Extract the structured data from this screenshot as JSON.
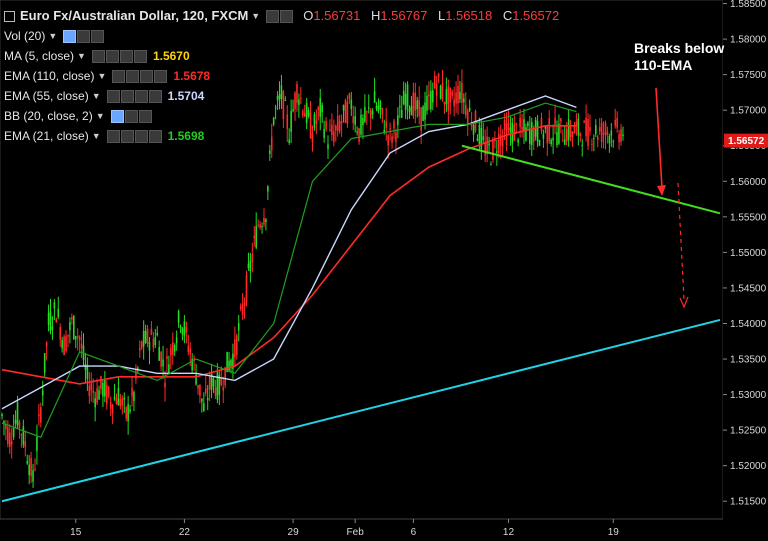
{
  "header": {
    "symbol": "Euro Fx/Australian Dollar, 120, FXCM",
    "ohlc": [
      {
        "label": "O",
        "value": "1.56731"
      },
      {
        "label": "H",
        "value": "1.56767"
      },
      {
        "label": "L",
        "value": "1.56518"
      },
      {
        "label": "C",
        "value": "1.56572"
      }
    ]
  },
  "indicators": [
    {
      "label": "Vol (20)",
      "value": "",
      "color": "#e6e6e6"
    },
    {
      "label": "MA (5, close)",
      "value": "1.5670",
      "color": "#ffd400"
    },
    {
      "label": "EMA (110, close)",
      "value": "1.5678",
      "color": "#ff2a2a"
    },
    {
      "label": "EMA (55, close)",
      "value": "1.5704",
      "color": "#c9d8ff"
    },
    {
      "label": "BB (20, close, 2)",
      "value": "",
      "color": "#e6e6e6"
    },
    {
      "label": "EMA (21, close)",
      "value": "1.5698",
      "color": "#22cc22"
    }
  ],
  "annotation": {
    "line1": "Breaks below",
    "line2": "110-EMA"
  },
  "last_price": "1.56572",
  "colors": {
    "up": "#22dd22",
    "down": "#ff2a2a",
    "ema110": "#ff2a2a",
    "ema55": "#c9d8ff",
    "ema21": "#1f9f1f",
    "trend_up": "#22d3e6",
    "trend_down": "#44dd22"
  },
  "chart_data": {
    "type": "line",
    "title": "Euro Fx/Australian Dollar, 120, FXCM",
    "ylim": [
      1.5125,
      1.5855
    ],
    "y_ticks": [
      "1.51500",
      "1.52000",
      "1.52500",
      "1.53000",
      "1.53500",
      "1.54000",
      "1.54500",
      "1.55000",
      "1.55500",
      "1.56000",
      "1.56500",
      "1.57000",
      "1.57500",
      "1.58000",
      "1.58500"
    ],
    "x_ticks": [
      "15",
      "22",
      "29",
      "Feb",
      "6",
      "12",
      "19"
    ],
    "series": [
      {
        "name": "MA (5, close)",
        "x": [
          0,
          4,
          8,
          12,
          16,
          20,
          24,
          28,
          32,
          36,
          40,
          44,
          48,
          52,
          56,
          60,
          64,
          68,
          72,
          76,
          80,
          84,
          88,
          92,
          96,
          100,
          104,
          108,
          112,
          116,
          120,
          124,
          128,
          132,
          136,
          140,
          144,
          148,
          152,
          156,
          160,
          164,
          168,
          172,
          176,
          180,
          184,
          188,
          192,
          196,
          200,
          204,
          208,
          212,
          216,
          220,
          224,
          228,
          232,
          236,
          240,
          244,
          248,
          252,
          256,
          260,
          264,
          268,
          272,
          276,
          280,
          284,
          288,
          292,
          296,
          300
        ],
        "values": [
          1.527,
          1.524,
          1.527,
          1.523,
          1.518,
          1.528,
          1.54,
          1.542,
          1.537,
          1.54,
          1.538,
          1.532,
          1.53,
          1.531,
          1.529,
          1.53,
          1.527,
          1.53,
          1.537,
          1.538,
          1.538,
          1.533,
          1.537,
          1.541,
          1.537,
          1.533,
          1.528,
          1.532,
          1.531,
          1.534,
          1.536,
          1.542,
          1.548,
          1.554,
          1.556,
          1.569,
          1.572,
          1.567,
          1.573,
          1.57,
          1.567,
          1.57,
          1.566,
          1.567,
          1.569,
          1.571,
          1.567,
          1.569,
          1.571,
          1.569,
          1.566,
          1.568,
          1.572,
          1.571,
          1.569,
          1.571,
          1.574,
          1.572,
          1.571,
          1.573,
          1.57,
          1.568,
          1.565,
          1.564,
          1.566,
          1.567,
          1.567,
          1.567,
          1.567,
          1.567,
          1.567,
          1.567,
          1.567,
          1.567,
          1.567,
          1.567
        ]
      },
      {
        "name": "EMA (110, close)",
        "x": [
          0,
          20,
          40,
          60,
          80,
          100,
          120,
          140,
          160,
          180,
          200,
          220,
          240,
          260,
          280,
          296
        ],
        "values": [
          1.5335,
          1.5325,
          1.5315,
          1.5325,
          1.5325,
          1.5325,
          1.534,
          1.538,
          1.544,
          1.551,
          1.558,
          1.562,
          1.5645,
          1.5665,
          1.5678,
          1.5678
        ]
      },
      {
        "name": "EMA (55, close)",
        "x": [
          0,
          20,
          40,
          60,
          80,
          100,
          120,
          140,
          160,
          180,
          200,
          220,
          240,
          260,
          280,
          296
        ],
        "values": [
          1.528,
          1.531,
          1.534,
          1.534,
          1.533,
          1.533,
          1.532,
          1.535,
          1.545,
          1.556,
          1.564,
          1.567,
          1.568,
          1.57,
          1.572,
          1.5704
        ]
      },
      {
        "name": "EMA (21, close)",
        "x": [
          0,
          20,
          40,
          60,
          80,
          100,
          120,
          140,
          160,
          180,
          200,
          220,
          240,
          260,
          280,
          296
        ],
        "values": [
          1.526,
          1.524,
          1.536,
          1.534,
          1.532,
          1.535,
          1.533,
          1.54,
          1.56,
          1.566,
          1.567,
          1.568,
          1.568,
          1.569,
          1.571,
          1.5698
        ]
      }
    ],
    "trendlines": [
      {
        "name": "support",
        "from": [
          0,
          1.515
        ],
        "to": [
          370,
          1.5405
        ]
      },
      {
        "name": "resistance",
        "from": [
          237,
          1.565
        ],
        "to": [
          370,
          1.5555
        ]
      }
    ]
  }
}
